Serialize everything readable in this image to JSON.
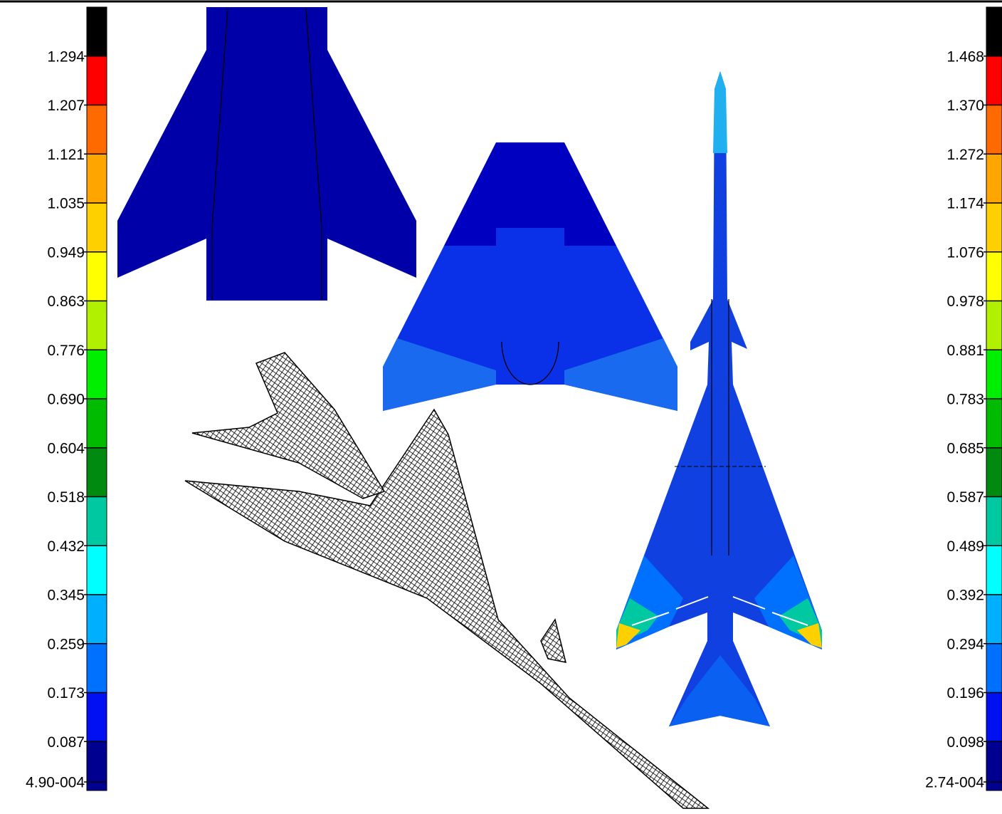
{
  "legends": [
    {
      "labels": [
        "1.294",
        "1.207",
        "1.121",
        "1.035",
        "0.949",
        "0.863",
        "0.776",
        "0.690",
        "0.604",
        "0.518",
        "0.432",
        "0.345",
        "0.259",
        "0.173",
        "0.087",
        "4.90-004"
      ],
      "colors": [
        "#000000",
        "#ff0000",
        "#ff6a00",
        "#ffa500",
        "#ffd000",
        "#ffff00",
        "#b0f000",
        "#00ee00",
        "#00bb00",
        "#008a10",
        "#00c8a0",
        "#00ffff",
        "#00b0ff",
        "#0070ff",
        "#0010f0",
        "#000090"
      ]
    },
    {
      "labels": [
        "1.468",
        "1.370",
        "1.272",
        "1.174",
        "1.076",
        "0.978",
        "0.881",
        "0.783",
        "0.685",
        "0.587",
        "0.489",
        "0.392",
        "0.294",
        "0.196",
        "0.098",
        "2.74-004"
      ],
      "colors": [
        "#000000",
        "#ff0000",
        "#ff6a00",
        "#ffa500",
        "#ffd000",
        "#ffff00",
        "#b0f000",
        "#00ee00",
        "#00bb00",
        "#008a10",
        "#00c8a0",
        "#00ffff",
        "#00b0ff",
        "#0070ff",
        "#0010f0",
        "#000090"
      ]
    }
  ]
}
